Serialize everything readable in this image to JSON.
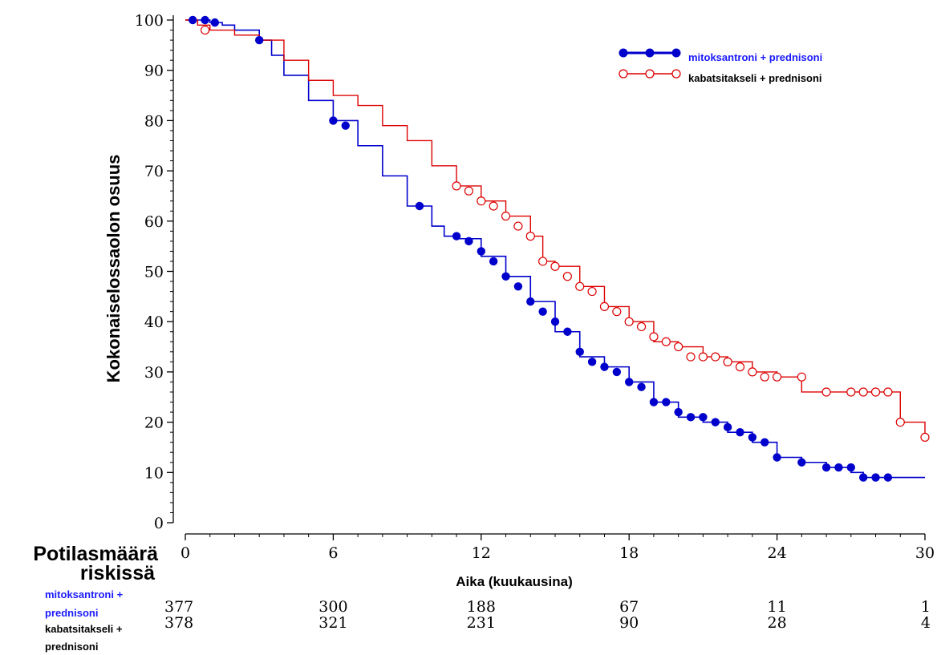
{
  "chart_data": {
    "type": "line",
    "step": true,
    "ylabel": "Kokonaiselossaolon osuus",
    "xlabel": "Aika (kuukausina)",
    "xlim": [
      0,
      30
    ],
    "ylim": [
      0,
      100
    ],
    "x_ticks": [
      0,
      6,
      12,
      18,
      24,
      30
    ],
    "y_ticks": [
      0,
      10,
      20,
      30,
      40,
      50,
      60,
      70,
      80,
      90,
      100
    ],
    "legend_position": "top-right",
    "series": [
      {
        "name": "mitoksantroni + prednisoni",
        "color": "#0000cc",
        "marker": "filled-circle",
        "points": [
          [
            0,
            100
          ],
          [
            0.5,
            100
          ],
          [
            1,
            99.5
          ],
          [
            1.5,
            99
          ],
          [
            2,
            98
          ],
          [
            3,
            96
          ],
          [
            3.5,
            93
          ],
          [
            4,
            89
          ],
          [
            5,
            84
          ],
          [
            6,
            80
          ],
          [
            7,
            75
          ],
          [
            8,
            69
          ],
          [
            9,
            63
          ],
          [
            10,
            59
          ],
          [
            10.5,
            57
          ],
          [
            11,
            56.5
          ],
          [
            12,
            53
          ],
          [
            13,
            49
          ],
          [
            14,
            44
          ],
          [
            15,
            38
          ],
          [
            16,
            33
          ],
          [
            17,
            31
          ],
          [
            18,
            28
          ],
          [
            19,
            24
          ],
          [
            20,
            21
          ],
          [
            21,
            20
          ],
          [
            22,
            18
          ],
          [
            23,
            16
          ],
          [
            24,
            13
          ],
          [
            25,
            12
          ],
          [
            26,
            11
          ],
          [
            27,
            10
          ],
          [
            27.5,
            9
          ],
          [
            28.5,
            9
          ],
          [
            30,
            9
          ]
        ],
        "markers": [
          [
            0.3,
            100
          ],
          [
            0.8,
            100
          ],
          [
            1.2,
            99.5
          ],
          [
            3,
            96
          ],
          [
            6,
            80
          ],
          [
            6.5,
            79
          ],
          [
            9.5,
            63
          ],
          [
            11,
            57
          ],
          [
            11.5,
            56
          ],
          [
            12,
            54
          ],
          [
            12.5,
            52
          ],
          [
            13,
            49
          ],
          [
            13.5,
            47
          ],
          [
            14,
            44
          ],
          [
            14.5,
            42
          ],
          [
            15,
            40
          ],
          [
            15.5,
            38
          ],
          [
            16,
            34
          ],
          [
            16.5,
            32
          ],
          [
            17,
            31
          ],
          [
            17.5,
            30
          ],
          [
            18,
            28
          ],
          [
            18.5,
            27
          ],
          [
            19,
            24
          ],
          [
            19.5,
            24
          ],
          [
            20,
            22
          ],
          [
            20.5,
            21
          ],
          [
            21,
            21
          ],
          [
            21.5,
            20
          ],
          [
            22,
            19
          ],
          [
            22.5,
            18
          ],
          [
            23,
            17
          ],
          [
            23.5,
            16
          ],
          [
            24,
            13
          ],
          [
            25,
            12
          ],
          [
            26,
            11
          ],
          [
            26.5,
            11
          ],
          [
            27,
            11
          ],
          [
            27.5,
            9
          ],
          [
            28,
            9
          ],
          [
            28.5,
            9
          ]
        ]
      },
      {
        "name": "kabatsitakseli + prednisoni",
        "color": "#dd0000",
        "marker": "open-circle",
        "points": [
          [
            0,
            100
          ],
          [
            0.5,
            99
          ],
          [
            1,
            98
          ],
          [
            2,
            97
          ],
          [
            3,
            96
          ],
          [
            4,
            92
          ],
          [
            5,
            88
          ],
          [
            6,
            85
          ],
          [
            7,
            83
          ],
          [
            8,
            79
          ],
          [
            9,
            76
          ],
          [
            10,
            71
          ],
          [
            11,
            67
          ],
          [
            12,
            64
          ],
          [
            13,
            61
          ],
          [
            14,
            57
          ],
          [
            14.5,
            52
          ],
          [
            15,
            51
          ],
          [
            16,
            47
          ],
          [
            17,
            43
          ],
          [
            18,
            40
          ],
          [
            19,
            36
          ],
          [
            20,
            35
          ],
          [
            21,
            33
          ],
          [
            22,
            32
          ],
          [
            23,
            30
          ],
          [
            24,
            29
          ],
          [
            25,
            26
          ],
          [
            26,
            26
          ],
          [
            28,
            26
          ],
          [
            29,
            20
          ],
          [
            30,
            17
          ]
        ],
        "markers": [
          [
            0.8,
            98
          ],
          [
            11,
            67
          ],
          [
            11.5,
            66
          ],
          [
            12,
            64
          ],
          [
            12.5,
            63
          ],
          [
            13,
            61
          ],
          [
            13.5,
            59
          ],
          [
            14,
            57
          ],
          [
            14.5,
            52
          ],
          [
            15,
            51
          ],
          [
            15.5,
            49
          ],
          [
            16,
            47
          ],
          [
            16.5,
            46
          ],
          [
            17,
            43
          ],
          [
            17.5,
            42
          ],
          [
            18,
            40
          ],
          [
            18.5,
            39
          ],
          [
            19,
            37
          ],
          [
            19.5,
            36
          ],
          [
            20,
            35
          ],
          [
            20.5,
            33
          ],
          [
            21,
            33
          ],
          [
            21.5,
            33
          ],
          [
            22,
            32
          ],
          [
            22.5,
            31
          ],
          [
            23,
            30
          ],
          [
            23.5,
            29
          ],
          [
            24,
            29
          ],
          [
            25,
            29
          ],
          [
            26,
            26
          ],
          [
            27,
            26
          ],
          [
            27.5,
            26
          ],
          [
            28,
            26
          ],
          [
            28.5,
            26
          ],
          [
            29,
            20
          ],
          [
            30,
            17
          ]
        ]
      }
    ]
  },
  "risk_table": {
    "title_line1": "Potilasmäärä",
    "title_line2": "riskissä",
    "rows": [
      {
        "label_line1": "mitoksantroni +",
        "label_line2": "prednisoni",
        "color": "#1a1aff",
        "values": [
          "377",
          "300",
          "188",
          "67",
          "11",
          "1"
        ]
      },
      {
        "label_line1": "kabatsitakseli +",
        "label_line2": "prednisoni",
        "color": "#000000",
        "values": [
          "378",
          "321",
          "231",
          "90",
          "28",
          "4"
        ]
      }
    ]
  }
}
